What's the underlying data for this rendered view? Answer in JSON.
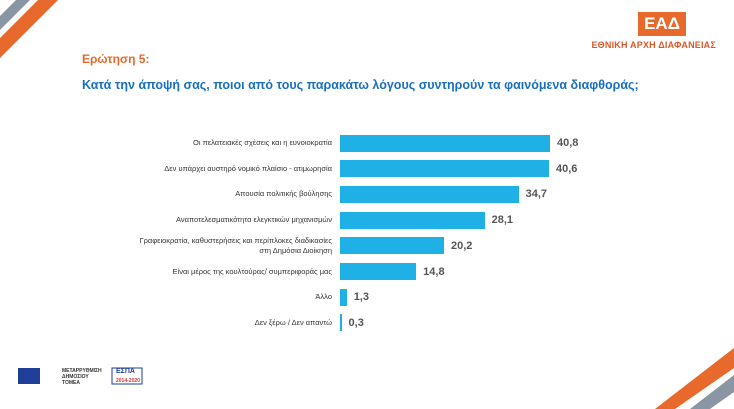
{
  "header": {
    "logo": "ΕΑΔ",
    "organization": "ΕΘΝΙΚΗ ΑΡΧΗ ΔΙΑΦΑΝΕΙΑΣ"
  },
  "chart_data": {
    "type": "bar",
    "orientation": "horizontal",
    "title": "Ερώτηση 5:",
    "subtitle": "Κατά την άποψή σας, ποιοι από τους παρακάτω λόγους συντηρούν τα φαινόμενα διαφθοράς;",
    "categories": [
      "Οι πελατειακές σχέσεις και η ευνοιοκρατία",
      "Δεν υπάρχει αυστηρό νομικό πλαίσιο - ατιμωρησία",
      "Απουσία πολιτικής βούλησης",
      "Αναποτελεσματικότητα ελεγκτικών μηχανισμών",
      "Γραφειοκρατία, καθυστερήσεις και περίπλοκες διαδικασίες στη Δημόσια Διοίκηση",
      "Είναι μέρος της κουλτούρας/ συμπεριφοράς μας",
      "Άλλο",
      "Δεν ξέρω / Δεν απαντώ"
    ],
    "values": [
      40.8,
      40.6,
      34.7,
      28.1,
      20.2,
      14.8,
      1.3,
      0.3
    ],
    "value_labels": [
      "40,8",
      "40,6",
      "34,7",
      "28,1",
      "20,2",
      "14,8",
      "1,3",
      "0,3"
    ],
    "color": "#1fb1e6"
  },
  "footer": {
    "logos": [
      "ΜΕΤΑΡΡΥΘΜΙΣΗ ΔΗΜΟΣΙΟΥ ΤΟΜΕΑ",
      "ΕΣΠΑ",
      "2014-2020"
    ]
  }
}
